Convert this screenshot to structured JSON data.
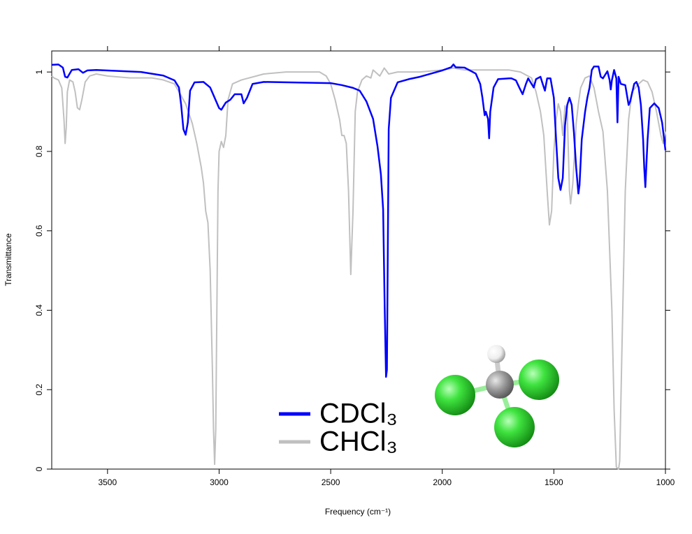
{
  "chart_data": {
    "type": "line",
    "x_label": "Frequency (cm⁻¹)",
    "y_label": "Transmittance",
    "xlim": [
      3750,
      1000
    ],
    "ylim": [
      0,
      1.053
    ],
    "xticks": [
      3500,
      3000,
      2500,
      2000,
      1500,
      1000
    ],
    "yticks": [
      0,
      {
        "value": 0.2,
        "label": "0.2"
      },
      {
        "value": 0.4,
        "label": "0.4"
      },
      {
        "value": 0.6,
        "label": "0.6"
      },
      {
        "value": 0.8,
        "label": "0.8"
      },
      1
    ],
    "legend": "lower center",
    "series": [
      {
        "name": "CDCl₃",
        "color": "#0000ff",
        "x": [
          3750,
          3720,
          3700,
          3690,
          3680,
          3660,
          3630,
          3610,
          3590,
          3550,
          3350,
          3250,
          3200,
          3180,
          3170,
          3160,
          3150,
          3140,
          3130,
          3110,
          3070,
          3040,
          3020,
          3000,
          2990,
          2970,
          2950,
          2930,
          2900,
          2890,
          2875,
          2850,
          2800,
          2500,
          2450,
          2400,
          2370,
          2340,
          2310,
          2290,
          2275,
          2265,
          2258,
          2252,
          2248,
          2245,
          2240,
          2230,
          2200,
          2150,
          2100,
          2050,
          2000,
          1960,
          1950,
          1940,
          1900,
          1850,
          1830,
          1820,
          1810,
          1805,
          1795,
          1790,
          1785,
          1770,
          1750,
          1700,
          1690,
          1670,
          1655,
          1640,
          1625,
          1615,
          1600,
          1590,
          1580,
          1560,
          1550,
          1540,
          1530,
          1515,
          1500,
          1490,
          1480,
          1470,
          1460,
          1450,
          1440,
          1430,
          1420,
          1410,
          1400,
          1390,
          1385,
          1375,
          1360,
          1350,
          1340,
          1330,
          1320,
          1300,
          1290,
          1280,
          1260,
          1250,
          1245,
          1240,
          1230,
          1220,
          1215,
          1210,
          1200,
          1180,
          1165,
          1158,
          1140,
          1130,
          1120,
          1110,
          1100,
          1095,
          1090,
          1080,
          1070,
          1050,
          1030,
          1015,
          1000
        ],
        "values": [
          1.018,
          1.019,
          1.011,
          0.988,
          0.986,
          1.005,
          1.007,
          0.998,
          1.004,
          1.005,
          1.0,
          0.991,
          0.979,
          0.961,
          0.917,
          0.856,
          0.842,
          0.873,
          0.953,
          0.974,
          0.975,
          0.961,
          0.935,
          0.909,
          0.905,
          0.923,
          0.93,
          0.944,
          0.944,
          0.921,
          0.935,
          0.97,
          0.975,
          0.972,
          0.967,
          0.96,
          0.953,
          0.926,
          0.882,
          0.812,
          0.742,
          0.654,
          0.408,
          0.232,
          0.25,
          0.478,
          0.856,
          0.935,
          0.974,
          0.982,
          0.988,
          0.996,
          1.004,
          1.012,
          1.019,
          1.012,
          1.011,
          0.996,
          0.97,
          0.935,
          0.891,
          0.9,
          0.882,
          0.833,
          0.9,
          0.961,
          0.982,
          0.984,
          0.984,
          0.979,
          0.961,
          0.944,
          0.97,
          0.984,
          0.97,
          0.961,
          0.982,
          0.988,
          0.97,
          0.953,
          0.984,
          0.984,
          0.935,
          0.83,
          0.733,
          0.703,
          0.733,
          0.865,
          0.917,
          0.935,
          0.917,
          0.847,
          0.759,
          0.694,
          0.715,
          0.83,
          0.9,
          0.935,
          0.961,
          1.005,
          1.014,
          1.014,
          0.988,
          0.984,
          1.002,
          0.979,
          0.956,
          0.979,
          1.005,
          0.984,
          0.873,
          0.988,
          0.97,
          0.967,
          0.917,
          0.926,
          0.97,
          0.975,
          0.961,
          0.917,
          0.83,
          0.759,
          0.71,
          0.83,
          0.909,
          0.921,
          0.909,
          0.873,
          0.803
        ]
      },
      {
        "name": "CHCl₃",
        "color": "#c0c0c0",
        "x": [
          3750,
          3740,
          3720,
          3705,
          3695,
          3690,
          3685,
          3680,
          3670,
          3655,
          3645,
          3635,
          3625,
          3615,
          3600,
          3580,
          3550,
          3500,
          3400,
          3300,
          3250,
          3200,
          3150,
          3120,
          3100,
          3080,
          3070,
          3060,
          3050,
          3040,
          3030,
          3025,
          3020,
          3015,
          3010,
          3005,
          3000,
          2990,
          2980,
          2970,
          2960,
          2940,
          2900,
          2800,
          2700,
          2600,
          2550,
          2520,
          2500,
          2480,
          2460,
          2450,
          2440,
          2430,
          2420,
          2410,
          2400,
          2390,
          2380,
          2360,
          2340,
          2320,
          2310,
          2300,
          2280,
          2260,
          2240,
          2200,
          2100,
          2000,
          1950,
          1900,
          1800,
          1700,
          1650,
          1600,
          1580,
          1560,
          1545,
          1530,
          1520,
          1510,
          1500,
          1490,
          1480,
          1470,
          1460,
          1450,
          1440,
          1430,
          1425,
          1415,
          1400,
          1390,
          1380,
          1360,
          1340,
          1320,
          1310,
          1300,
          1280,
          1260,
          1240,
          1230,
          1220,
          1210,
          1205,
          1195,
          1180,
          1165,
          1150,
          1120,
          1100,
          1080,
          1060,
          1040,
          1020,
          1010,
          1000
        ],
        "values": [
          0.99,
          0.985,
          0.98,
          0.96,
          0.88,
          0.82,
          0.86,
          0.95,
          0.98,
          0.975,
          0.95,
          0.91,
          0.905,
          0.93,
          0.975,
          0.99,
          0.995,
          0.99,
          0.985,
          0.985,
          0.98,
          0.97,
          0.92,
          0.87,
          0.82,
          0.76,
          0.72,
          0.65,
          0.62,
          0.5,
          0.25,
          0.1,
          0.012,
          0.1,
          0.4,
          0.7,
          0.8,
          0.825,
          0.81,
          0.84,
          0.93,
          0.97,
          0.98,
          0.995,
          1.0,
          1.0,
          1.0,
          0.99,
          0.97,
          0.93,
          0.88,
          0.84,
          0.84,
          0.82,
          0.7,
          0.49,
          0.65,
          0.9,
          0.95,
          0.98,
          0.99,
          0.985,
          1.005,
          1.0,
          0.99,
          1.01,
          0.995,
          1.0,
          1.0,
          1.005,
          1.01,
          1.005,
          1.005,
          1.005,
          1.0,
          0.985,
          0.95,
          0.9,
          0.84,
          0.7,
          0.615,
          0.65,
          0.8,
          0.88,
          0.92,
          0.9,
          0.84,
          0.915,
          0.9,
          0.7,
          0.668,
          0.72,
          0.87,
          0.92,
          0.96,
          0.985,
          0.99,
          0.96,
          0.93,
          0.9,
          0.85,
          0.7,
          0.4,
          0.15,
          0.005,
          0.0,
          0.02,
          0.3,
          0.7,
          0.88,
          0.95,
          0.97,
          0.98,
          0.975,
          0.95,
          0.9,
          0.84,
          0.82,
          0.85
        ]
      }
    ]
  }
}
